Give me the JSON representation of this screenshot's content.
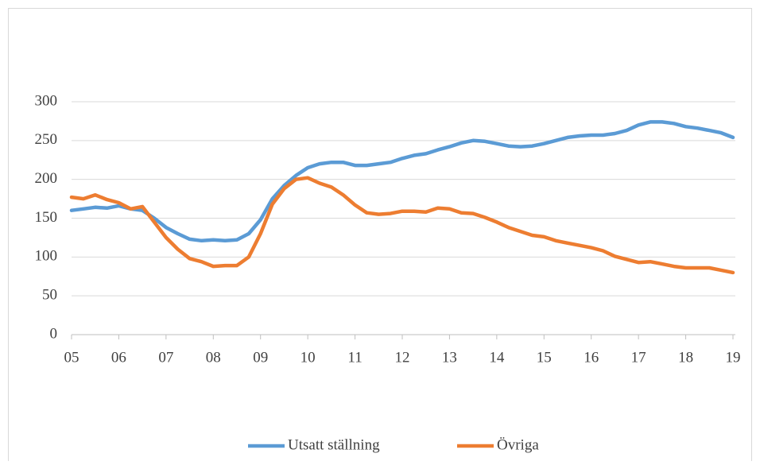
{
  "chart_data": {
    "type": "line",
    "x": [
      5,
      5.25,
      5.5,
      5.75,
      6,
      6.25,
      6.5,
      6.75,
      7,
      7.25,
      7.5,
      7.75,
      8,
      8.25,
      8.5,
      8.75,
      9,
      9.25,
      9.5,
      9.75,
      10,
      10.25,
      10.5,
      10.75,
      11,
      11.25,
      11.5,
      11.75,
      12,
      12.25,
      12.5,
      12.75,
      13,
      13.25,
      13.5,
      13.75,
      14,
      14.25,
      14.5,
      14.75,
      15,
      15.25,
      15.5,
      15.75,
      16,
      16.25,
      16.5,
      16.75,
      17,
      17.25,
      17.5,
      17.75,
      18,
      18.25,
      18.5,
      18.75,
      19
    ],
    "series": [
      {
        "name": "Utsatt ställning",
        "color": "#5b9bd5",
        "values": [
          160,
          162,
          164,
          163,
          166,
          162,
          160,
          150,
          138,
          130,
          123,
          121,
          122,
          121,
          122,
          130,
          148,
          175,
          192,
          205,
          215,
          220,
          222,
          222,
          218,
          218,
          220,
          222,
          227,
          231,
          233,
          238,
          242,
          247,
          250,
          249,
          246,
          243,
          242,
          243,
          246,
          250,
          254,
          256,
          257,
          257,
          259,
          263,
          270,
          274,
          274,
          272,
          268,
          266,
          263,
          260,
          254
        ]
      },
      {
        "name": "Övriga",
        "color": "#ed7d31",
        "values": [
          177,
          175,
          180,
          174,
          170,
          162,
          165,
          145,
          125,
          110,
          98,
          94,
          88,
          89,
          89,
          100,
          130,
          168,
          188,
          200,
          202,
          195,
          190,
          180,
          167,
          157,
          155,
          156,
          159,
          159,
          158,
          163,
          162,
          157,
          156,
          151,
          145,
          138,
          133,
          128,
          126,
          121,
          118,
          115,
          112,
          108,
          101,
          97,
          93,
          94,
          91,
          88,
          86,
          86,
          86,
          83,
          80
        ]
      }
    ],
    "xlim": [
      5,
      19.05
    ],
    "xticks": [
      {
        "value": 5,
        "label": "05"
      },
      {
        "value": 6,
        "label": "06"
      },
      {
        "value": 7,
        "label": "07"
      },
      {
        "value": 8,
        "label": "08"
      },
      {
        "value": 9,
        "label": "09"
      },
      10,
      11,
      12,
      13,
      14,
      15,
      16,
      17,
      18,
      19
    ],
    "ylim": [
      0,
      300
    ],
    "yticks": [
      0,
      50,
      100,
      150,
      200,
      250,
      300
    ],
    "grid": true
  }
}
